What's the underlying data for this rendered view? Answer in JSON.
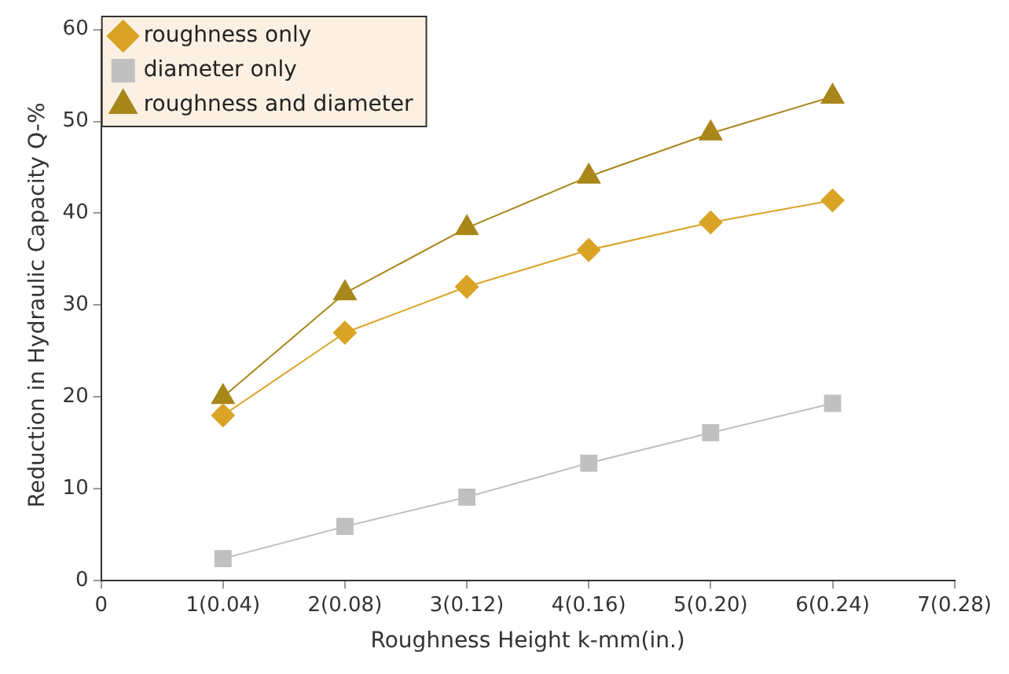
{
  "chart_data": {
    "type": "line",
    "xlabel": "Roughness Height k-mm(in.)",
    "ylabel": "Reduction in Hydraulic Capacity Q-%",
    "categories": [
      "0",
      "1(0.04)",
      "2(0.08)",
      "3(0.12)",
      "4(0.16)",
      "5(0.20)",
      "6(0.24)",
      "7(0.28)"
    ],
    "series": [
      {
        "name": "roughness only",
        "color": "#d9a326",
        "marker": "diamond",
        "values": [
          null,
          18,
          27,
          32,
          36,
          39,
          41.4,
          null
        ]
      },
      {
        "name": "diameter only",
        "color": "#c0c0c0",
        "marker": "square",
        "values": [
          null,
          2.4,
          5.9,
          9.1,
          12.8,
          16.1,
          19.3,
          null
        ]
      },
      {
        "name": "roughness and diameter",
        "color": "#a8861a",
        "marker": "triangle",
        "values": [
          null,
          20,
          31.3,
          38.4,
          44,
          48.7,
          52.7,
          null
        ]
      }
    ],
    "ylim": [
      0,
      60
    ],
    "yticks": [
      0,
      10,
      20,
      30,
      40,
      50,
      60
    ],
    "grid": false,
    "legend": "top left",
    "line_style": "solid"
  }
}
